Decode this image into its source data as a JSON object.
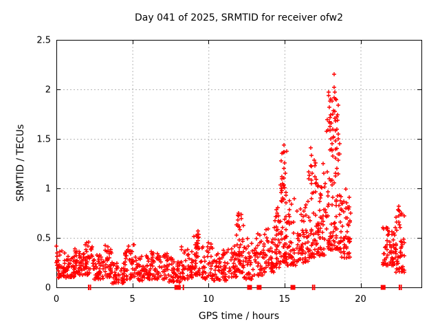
{
  "page": {
    "background": "#ffffff"
  },
  "chart_data": {
    "type": "scatter",
    "title": "Day 041 of 2025, SRMTID for receiver ofw2",
    "xlabel": "GPS time / hours",
    "ylabel": "SRMTID / TECUs",
    "xlim": [
      0,
      24
    ],
    "ylim": [
      0,
      2.5
    ],
    "xticks": [
      0,
      5,
      10,
      15,
      20
    ],
    "yticks": [
      0,
      0.5,
      1,
      1.5,
      2,
      2.5
    ],
    "grid": true,
    "legend": "none",
    "marker": "plus",
    "colors": {
      "marker": "#ff0000",
      "grid": "#b5b5b5",
      "axis": "#000000",
      "text": "#000000"
    },
    "seed": 41,
    "description": "SRMTID scatter: quiet band ~0.1-0.4 TECU from 0-13h; activity rises after 13h with peaks ~1.45 TECU at 14.9h, ~1.4 at 16.8h, maximum 2.15 at 18.25h; data gap 19.3-21.5h; final cluster 0.15-0.85 TECU at 21.5-22.9h; red squares and double ticks mark events at y=0.",
    "envelope_segments": [
      [
        0.0,
        0.6,
        40,
        0.1,
        0.38,
        1.5
      ],
      [
        0.6,
        1.2,
        38,
        0.1,
        0.33,
        1.5
      ],
      [
        1.2,
        1.9,
        45,
        0.12,
        0.4,
        1.5
      ],
      [
        1.9,
        2.35,
        32,
        0.12,
        0.46,
        1.3
      ],
      [
        2.35,
        3.1,
        45,
        0.08,
        0.33,
        1.5
      ],
      [
        3.1,
        3.65,
        35,
        0.1,
        0.44,
        1.4
      ],
      [
        3.65,
        4.45,
        50,
        0.04,
        0.27,
        1.4
      ],
      [
        4.45,
        5.15,
        45,
        0.08,
        0.43,
        1.5
      ],
      [
        5.15,
        6.1,
        55,
        0.07,
        0.32,
        1.5
      ],
      [
        6.1,
        7.35,
        70,
        0.08,
        0.4,
        1.6
      ],
      [
        7.35,
        8.15,
        45,
        0.05,
        0.3,
        1.4
      ],
      [
        8.15,
        9.0,
        50,
        0.08,
        0.42,
        1.5
      ],
      [
        9.0,
        9.55,
        35,
        0.12,
        0.56,
        1.5
      ],
      [
        9.55,
        10.25,
        40,
        0.08,
        0.48,
        1.6
      ],
      [
        10.25,
        11.35,
        62,
        0.07,
        0.4,
        1.5
      ],
      [
        11.35,
        11.85,
        30,
        0.1,
        0.45,
        1.4
      ],
      [
        11.85,
        12.3,
        35,
        0.15,
        0.74,
        1.7
      ],
      [
        12.3,
        12.95,
        32,
        0.08,
        0.45,
        1.7
      ],
      [
        12.95,
        13.55,
        35,
        0.12,
        0.55,
        1.5
      ],
      [
        13.55,
        14.35,
        50,
        0.15,
        0.62,
        1.5
      ],
      [
        14.35,
        14.7,
        35,
        0.2,
        0.85,
        1.5
      ],
      [
        14.7,
        15.15,
        55,
        0.25,
        1.4,
        1.8
      ],
      [
        15.15,
        15.75,
        45,
        0.22,
        0.92,
        1.6
      ],
      [
        15.75,
        16.55,
        58,
        0.25,
        0.88,
        1.5
      ],
      [
        16.55,
        17.15,
        50,
        0.3,
        1.3,
        1.8
      ],
      [
        17.15,
        17.75,
        48,
        0.32,
        1.05,
        1.5
      ],
      [
        17.75,
        18.65,
        95,
        0.38,
        1.95,
        1.9
      ],
      [
        18.65,
        19.35,
        58,
        0.3,
        1.0,
        1.5
      ],
      [
        21.45,
        22.35,
        62,
        0.22,
        0.62,
        1.2
      ],
      [
        22.3,
        22.9,
        46,
        0.15,
        0.8,
        1.4
      ]
    ],
    "spike_columns": [
      {
        "x": 9.28,
        "jitter": 0.08,
        "ys": [
          0.42,
          0.47,
          0.52,
          0.57
        ]
      },
      {
        "x": 11.95,
        "jitter": 0.1,
        "ys": [
          0.48,
          0.53,
          0.58,
          0.63,
          0.68,
          0.72,
          0.75
        ]
      },
      {
        "x": 12.6,
        "jitter": 0.08,
        "ys": [
          0.35,
          0.42,
          0.49
        ]
      },
      {
        "x": 14.88,
        "jitter": 0.09,
        "ys": [
          0.98,
          1.05,
          1.12,
          1.2,
          1.28,
          1.36,
          1.44
        ]
      },
      {
        "x": 14.8,
        "jitter": 0.06,
        "ys": [
          0.9,
          1.0,
          1.1
        ]
      },
      {
        "x": 16.78,
        "jitter": 0.07,
        "ys": [
          0.95,
          1.05,
          1.15,
          1.22,
          1.33,
          1.41
        ]
      },
      {
        "x": 17.6,
        "jitter": 0.08,
        "ys": [
          1.05,
          1.15,
          1.25
        ]
      },
      {
        "x": 18.0,
        "jitter": 0.09,
        "ys": [
          1.5,
          1.58,
          1.66,
          1.74,
          1.82,
          1.9,
          1.97
        ]
      },
      {
        "x": 18.12,
        "jitter": 0.07,
        "ys": [
          1.45,
          1.6,
          1.75,
          1.88
        ]
      },
      {
        "x": 18.25,
        "jitter": 0.04,
        "ys": [
          2.15,
          2.02,
          1.92
        ]
      },
      {
        "x": 18.33,
        "jitter": 0.06,
        "ys": [
          1.48,
          1.58,
          1.68,
          1.78,
          1.9,
          1.97
        ]
      },
      {
        "x": 18.48,
        "jitter": 0.07,
        "ys": [
          1.4,
          1.5,
          1.6,
          1.72,
          1.84
        ]
      },
      {
        "x": 18.55,
        "jitter": 0.06,
        "ys": [
          1.35,
          1.45,
          1.55
        ]
      },
      {
        "x": 22.5,
        "jitter": 0.08,
        "ys": [
          0.66,
          0.72,
          0.78,
          0.82
        ]
      }
    ],
    "extra_points": [
      [
        0.02,
        0.42
      ],
      [
        0.03,
        0.35
      ],
      [
        0.05,
        0.31
      ],
      [
        0.04,
        0.27
      ],
      [
        0.06,
        0.22
      ]
    ],
    "axis_markers": {
      "squares": [
        7.92,
        8.02,
        12.7,
        13.33,
        15.55,
        21.48
      ],
      "ticks": [
        2.12,
        2.24,
        8.35,
        16.85,
        16.97,
        22.55,
        22.67
      ]
    }
  }
}
